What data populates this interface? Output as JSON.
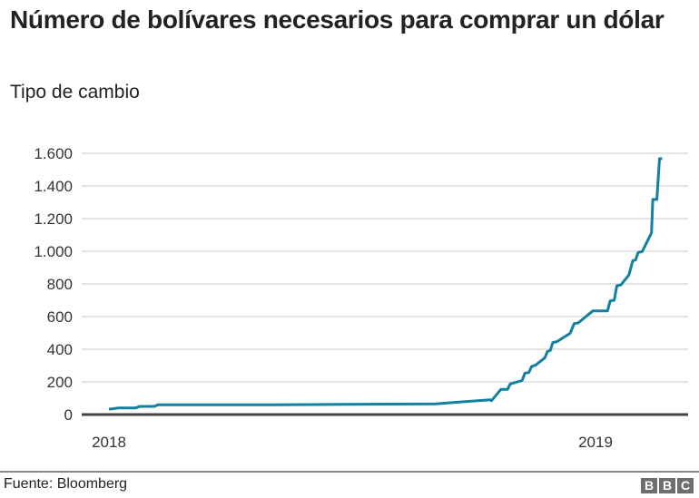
{
  "chart_data": {
    "type": "line",
    "title": "Número de bolívares necesarios para comprar un dólar",
    "subtitle": "Tipo de cambio",
    "xlabel": "",
    "ylabel": "",
    "ylim": [
      0,
      1600
    ],
    "yticks": [
      0,
      200,
      400,
      600,
      800,
      1000,
      1200,
      1400,
      1600
    ],
    "ytick_labels": [
      "0",
      "200",
      "400",
      "600",
      "800",
      "1.000",
      "1.200",
      "1.400",
      "1.600"
    ],
    "xtick_labels": [
      "2018",
      "2019"
    ],
    "grid": "horizontal",
    "color": "#1380a1",
    "series": [
      {
        "x": [
          "2018-01-01",
          "2018-01-08",
          "2018-01-21",
          "2018-01-24",
          "2018-02-04",
          "2018-02-07",
          "2018-05-03",
          "2018-09-03",
          "2018-09-23",
          "2018-10-14",
          "2018-10-15",
          "2018-10-22",
          "2018-10-27",
          "2018-10-29",
          "2018-11-07",
          "2018-11-09",
          "2018-11-12",
          "2018-11-14",
          "2018-11-17",
          "2018-11-24",
          "2018-11-26",
          "2018-11-28",
          "2018-11-30",
          "2018-12-03",
          "2018-12-13",
          "2018-12-16",
          "2018-12-19",
          "2018-12-30",
          "2019-01-10",
          "2019-01-12",
          "2019-01-15",
          "2019-01-17",
          "2019-01-20",
          "2019-01-26",
          "2019-01-29",
          "2019-01-31",
          "2019-02-02",
          "2019-02-05",
          "2019-02-12",
          "2019-02-13",
          "2019-02-16",
          "2019-02-18",
          "2019-02-20"
        ],
        "values": [
          33,
          40,
          40,
          50,
          50,
          60,
          60,
          65,
          78,
          90,
          85,
          154,
          154,
          187,
          209,
          254,
          257,
          294,
          302,
          348,
          387,
          391,
          441,
          446,
          498,
          557,
          561,
          635,
          635,
          696,
          700,
          789,
          794,
          854,
          943,
          946,
          993,
          998,
          1113,
          1317,
          1317,
          1567,
          1567
        ]
      }
    ]
  },
  "footer": {
    "source": "Fuente: Bloomberg",
    "logo": [
      "B",
      "B",
      "C"
    ]
  }
}
